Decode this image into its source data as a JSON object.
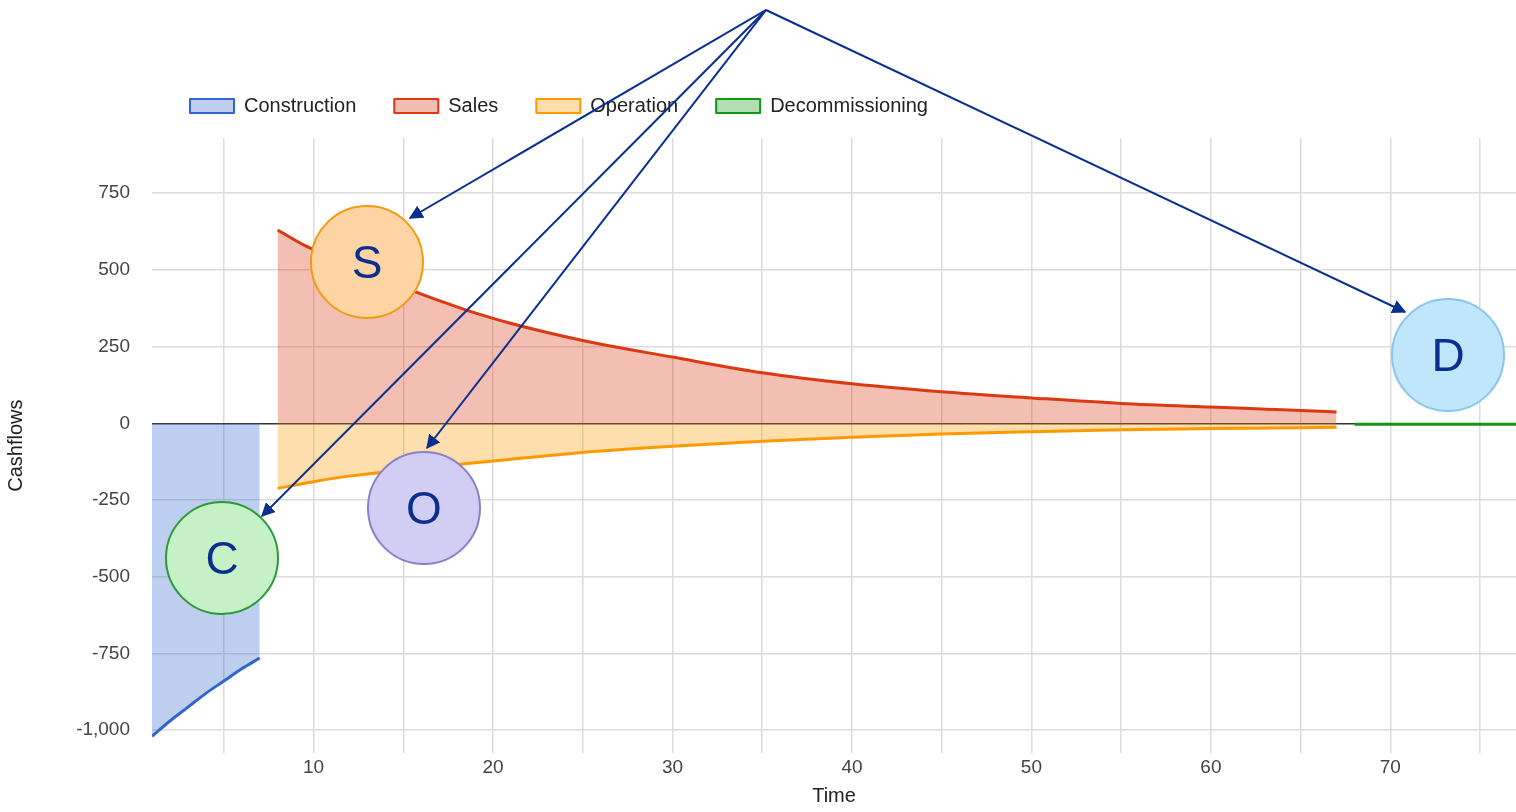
{
  "chart_data": {
    "type": "area",
    "xlabel": "Time",
    "ylabel": "Cashflows",
    "xlim": [
      1,
      77
    ],
    "ylim": [
      -1075,
      930
    ],
    "xticks": [
      {
        "value": 5,
        "label": null
      },
      10,
      {
        "value": 15,
        "label": null
      },
      20,
      {
        "value": 25,
        "label": null
      },
      30,
      {
        "value": 35,
        "label": null
      },
      40,
      {
        "value": 45,
        "label": null
      },
      50,
      {
        "value": 55,
        "label": null
      },
      60,
      {
        "value": 65,
        "label": null
      },
      70,
      {
        "value": 75,
        "label": null
      }
    ],
    "yticks": [
      {
        "value": -1000,
        "label": "-1,000"
      },
      -750,
      -500,
      -250,
      0,
      250,
      500,
      750
    ],
    "grid": true,
    "legend": "top left",
    "marker": "none",
    "series": [
      {
        "name": "Construction",
        "color": "#3366cc",
        "x": [
          1,
          2,
          3,
          4,
          5,
          6,
          7
        ],
        "values": [
          -1020,
          -970,
          -925,
          -880,
          -840,
          -800,
          -765
        ]
      },
      {
        "name": "Sales",
        "color": "#dc3912",
        "x": [
          8,
          9.5,
          12,
          15,
          17,
          20,
          25,
          30,
          35,
          40,
          45,
          50,
          55,
          60,
          65,
          67
        ],
        "values": [
          630,
          580,
          null,
          null,
          400,
          342,
          270,
          216,
          165,
          129,
          103,
          83,
          65,
          53,
          42,
          37
        ]
      },
      {
        "name": "Operation",
        "color": "#ff9900",
        "x": [
          8,
          10,
          12,
          15,
          20,
          25,
          30,
          35,
          40,
          45,
          50,
          55,
          60,
          65,
          67
        ],
        "values": [
          -212,
          -190,
          -172,
          null,
          -123,
          -95,
          -75,
          -58,
          -45,
          -35,
          -27,
          -21,
          -17,
          -14,
          -13
        ]
      },
      {
        "name": "Decommissioning",
        "color": "#109618",
        "x": [
          68,
          77
        ],
        "values": [
          -3,
          -3
        ]
      }
    ],
    "annotations": [
      "C",
      "S",
      "O",
      "D"
    ]
  }
}
